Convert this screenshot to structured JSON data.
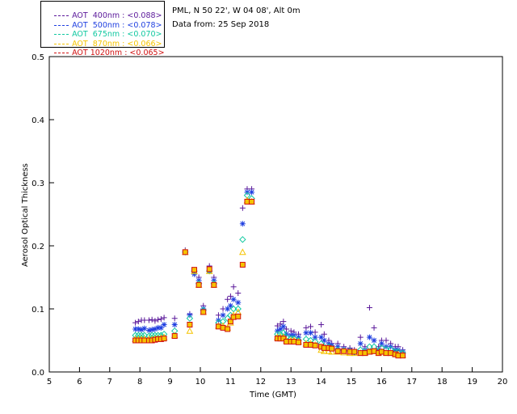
{
  "legend": [
    {
      "label": "AOT  400nm : <0.088>",
      "color": "#5a189a"
    },
    {
      "label": "AOT  500nm : <0.078>",
      "color": "#1f3fe0"
    },
    {
      "label": "AOT  675nm : <0.070>",
      "color": "#10c8a0"
    },
    {
      "label": "AOT  870nm : <0.066>",
      "color": "#f5c400"
    },
    {
      "label": "AOT 1020nm : <0.065>",
      "color": "#d01010"
    }
  ],
  "info": {
    "site": "PML, N 50 22', W 04 08', Alt 0m",
    "date": "Data from: 25 Sep 2018"
  },
  "chart_data": {
    "type": "scatter",
    "xlabel": "Time (GMT)",
    "ylabel": "Aerosol Optical Thickness",
    "xlim": [
      5,
      20
    ],
    "ylim": [
      0,
      0.5
    ],
    "xticks": [
      "5",
      "6",
      "7",
      "8",
      "9",
      "10",
      "11",
      "12",
      "13",
      "14",
      "15",
      "16",
      "17",
      "18",
      "19",
      "20"
    ],
    "yticks": [
      "0.0",
      "0.1",
      "0.2",
      "0.3",
      "0.4",
      "0.5"
    ],
    "grid": false,
    "x": [
      7.85,
      7.95,
      8.05,
      8.15,
      8.3,
      8.4,
      8.5,
      8.6,
      8.7,
      8.8,
      9.15,
      9.5,
      9.65,
      9.8,
      9.95,
      10.1,
      10.3,
      10.45,
      10.6,
      10.75,
      10.9,
      11.0,
      11.1,
      11.25,
      11.4,
      11.55,
      11.7,
      12.55,
      12.65,
      12.75,
      12.85,
      13.0,
      13.1,
      13.25,
      13.5,
      13.65,
      13.8,
      14.0,
      14.1,
      14.25,
      14.35,
      14.55,
      14.75,
      14.95,
      15.1,
      15.3,
      15.45,
      15.6,
      15.75,
      15.9,
      16.0,
      16.15,
      16.3,
      16.45,
      16.55,
      16.7
    ],
    "series": [
      {
        "name": "AOT  400nm",
        "marker": "plus",
        "values": [
          0.078,
          0.08,
          0.082,
          0.082,
          0.082,
          0.083,
          0.081,
          0.083,
          0.084,
          0.086,
          0.085,
          0.193,
          0.092,
          0.16,
          0.15,
          0.105,
          0.168,
          0.15,
          0.09,
          0.1,
          0.115,
          0.12,
          0.135,
          0.125,
          0.26,
          0.29,
          0.29,
          0.073,
          0.076,
          0.08,
          0.068,
          0.065,
          0.063,
          0.06,
          0.07,
          0.072,
          0.063,
          0.075,
          0.06,
          0.05,
          0.045,
          0.045,
          0.04,
          0.038,
          0.035,
          0.055,
          0.04,
          0.102,
          0.07,
          0.04,
          0.05,
          0.05,
          0.045,
          0.04,
          0.04,
          0.035
        ]
      },
      {
        "name": "AOT  500nm",
        "marker": "star",
        "values": [
          0.068,
          0.068,
          0.067,
          0.069,
          0.066,
          0.067,
          0.068,
          0.07,
          0.07,
          0.075,
          0.075,
          0.19,
          0.09,
          0.155,
          0.145,
          0.1,
          0.16,
          0.145,
          0.082,
          0.09,
          0.1,
          0.105,
          0.115,
          0.11,
          0.235,
          0.285,
          0.285,
          0.065,
          0.068,
          0.072,
          0.06,
          0.058,
          0.058,
          0.055,
          0.062,
          0.062,
          0.055,
          0.055,
          0.05,
          0.045,
          0.042,
          0.04,
          0.036,
          0.034,
          0.032,
          0.045,
          0.035,
          0.055,
          0.05,
          0.035,
          0.045,
          0.04,
          0.04,
          0.035,
          0.035,
          0.032
        ]
      },
      {
        "name": "AOT  675nm",
        "marker": "diamond",
        "values": [
          0.058,
          0.058,
          0.058,
          0.058,
          0.057,
          0.058,
          0.058,
          0.058,
          0.058,
          0.06,
          0.065,
          0.19,
          0.085,
          0.16,
          0.14,
          0.098,
          0.16,
          0.14,
          0.078,
          0.08,
          0.085,
          0.09,
          0.1,
          0.1,
          0.21,
          0.28,
          0.275,
          0.06,
          0.06,
          0.062,
          0.055,
          0.053,
          0.053,
          0.05,
          0.052,
          0.05,
          0.048,
          0.045,
          0.04,
          0.04,
          0.038,
          0.035,
          0.034,
          0.033,
          0.031,
          0.035,
          0.032,
          0.04,
          0.04,
          0.033,
          0.038,
          0.036,
          0.036,
          0.032,
          0.032,
          0.03
        ]
      },
      {
        "name": "AOT  870nm",
        "marker": "triangle",
        "values": [
          0.052,
          0.052,
          0.052,
          0.052,
          0.052,
          0.052,
          0.053,
          0.053,
          0.054,
          0.055,
          0.058,
          0.19,
          0.065,
          0.16,
          0.138,
          0.095,
          0.16,
          0.138,
          0.073,
          0.073,
          0.07,
          0.078,
          0.09,
          0.095,
          0.19,
          0.272,
          0.27,
          0.055,
          0.055,
          0.055,
          0.05,
          0.05,
          0.05,
          0.048,
          0.045,
          0.045,
          0.043,
          0.035,
          0.033,
          0.033,
          0.032,
          0.032,
          0.031,
          0.03,
          0.03,
          0.03,
          0.03,
          0.032,
          0.033,
          0.03,
          0.032,
          0.03,
          0.03,
          0.028,
          0.028,
          0.027
        ]
      },
      {
        "name": "AOT 1020nm",
        "marker": "square",
        "values": [
          0.05,
          0.05,
          0.05,
          0.05,
          0.05,
          0.05,
          0.051,
          0.052,
          0.052,
          0.053,
          0.057,
          0.19,
          0.075,
          0.162,
          0.138,
          0.095,
          0.163,
          0.138,
          0.072,
          0.07,
          0.068,
          0.08,
          0.087,
          0.088,
          0.17,
          0.27,
          0.27,
          0.053,
          0.053,
          0.053,
          0.048,
          0.048,
          0.048,
          0.047,
          0.043,
          0.043,
          0.042,
          0.04,
          0.038,
          0.038,
          0.037,
          0.033,
          0.033,
          0.032,
          0.032,
          0.03,
          0.03,
          0.032,
          0.033,
          0.03,
          0.032,
          0.03,
          0.03,
          0.028,
          0.026,
          0.026
        ]
      }
    ]
  }
}
